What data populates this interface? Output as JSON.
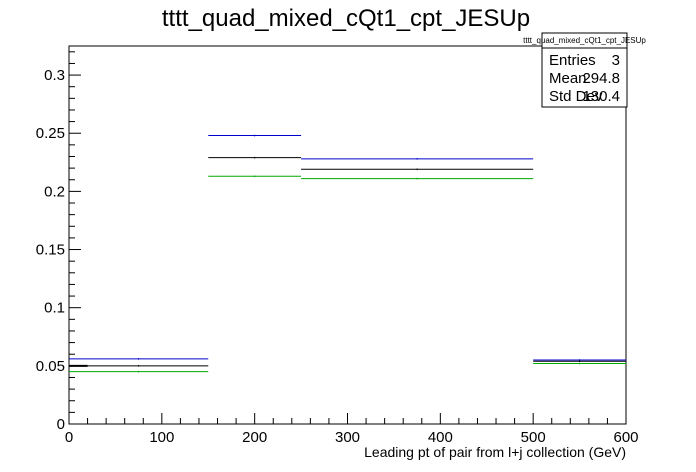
{
  "chart_data": {
    "type": "step-histogram",
    "title": "tttt_quad_mixed_cQt1_cpt_JESUp",
    "xlabel": "Leading pt of pair from l+j collection (GeV)",
    "ylabel": "",
    "xlim": [
      0,
      600
    ],
    "ylim": [
      0,
      0.325
    ],
    "x_ticks": [
      "0",
      "100",
      "200",
      "300",
      "400",
      "500",
      "600"
    ],
    "y_ticks": [
      "0",
      "0.05",
      "0.1",
      "0.15",
      "0.2",
      "0.25",
      "0.3"
    ],
    "bin_edges": [
      0,
      150,
      250,
      500,
      600
    ],
    "series": [
      {
        "color": "#0000cc",
        "values": [
          0.056,
          0.248,
          0.228,
          0.055
        ]
      },
      {
        "color": "#000000",
        "values": [
          0.05,
          0.229,
          0.219,
          0.054
        ]
      },
      {
        "color": "#00aa00",
        "values": [
          0.045,
          0.213,
          0.211,
          0.052
        ]
      }
    ],
    "grid": false,
    "legend": "none",
    "stats_box": {
      "position": "top-right",
      "title": "tttt_quad_mixed_cQt1_cpt_JESUp",
      "rows": [
        {
          "label": "Entries",
          "value": "3"
        },
        {
          "label": "Mean",
          "value": "294.8"
        },
        {
          "label": "Std Dev",
          "value": "130.4"
        }
      ]
    }
  }
}
